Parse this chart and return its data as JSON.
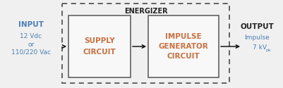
{
  "bg_color": "#f0f0f0",
  "border_color": "#555555",
  "inner_box_color": "#f8f8f8",
  "text_color_blue": "#4a7fb5",
  "text_color_orange": "#c87040",
  "text_color_dark": "#222222",
  "energizer_label": "ENERGIZER",
  "input_label": "INPUT",
  "input_sub1": "12 Vdc",
  "input_sub2": "or",
  "input_sub3": "110/220 Vac",
  "output_label": "OUTPUT",
  "output_impulse": "Impulse",
  "output_kv": "7 kV",
  "output_pk": "pk",
  "supply_line1": "SUPPLY",
  "supply_line2": "CIRCUIT",
  "impulse_line1": "IMPULSE",
  "impulse_line2": "GENERATOR",
  "impulse_line3": "CIRCUIT",
  "fig_width": 4.02,
  "fig_height": 1.25,
  "dpi": 100
}
